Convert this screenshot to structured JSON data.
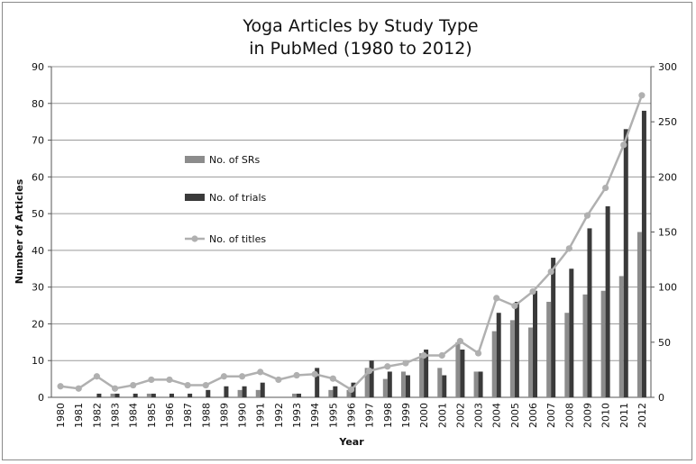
{
  "chart_data": {
    "type": "bar",
    "title_lines": [
      "Yoga Articles by Study Type",
      "in PubMed (1980 to 2012)"
    ],
    "xlabel": "Year",
    "ylabel": "Number of Articles",
    "ylim": [
      0,
      90
    ],
    "y_ticks": [
      0,
      10,
      20,
      30,
      40,
      50,
      60,
      70,
      80,
      90
    ],
    "y2lim": [
      0,
      300
    ],
    "y2_ticks": [
      0,
      50,
      100,
      150,
      200,
      250,
      300
    ],
    "grid": true,
    "legend_position": "left-center",
    "categories": [
      "1980",
      "1981",
      "1982",
      "1983",
      "1984",
      "1985",
      "1986",
      "1987",
      "1988",
      "1989",
      "1990",
      "1991",
      "1992",
      "1993",
      "1994",
      "1995",
      "1996",
      "1997",
      "1998",
      "1999",
      "2000",
      "2001",
      "2002",
      "2003",
      "2004",
      "2005",
      "2006",
      "2007",
      "2008",
      "2009",
      "2010",
      "2011",
      "2012"
    ],
    "series": [
      {
        "name": "No. of SRs",
        "kind": "bar",
        "axis": "left",
        "color": "#8c8c8c",
        "values": [
          0,
          0,
          0,
          1,
          0,
          1,
          0,
          0,
          0,
          0,
          2,
          2,
          0,
          1,
          0,
          2,
          2,
          8,
          5,
          7,
          12,
          8,
          15,
          7,
          18,
          21,
          19,
          26,
          23,
          28,
          29,
          33,
          45
        ]
      },
      {
        "name": "No. of trials",
        "kind": "bar",
        "axis": "left",
        "color": "#3a3a3a",
        "values": [
          0,
          0,
          1,
          1,
          1,
          1,
          1,
          1,
          2,
          3,
          3,
          4,
          0,
          1,
          8,
          3,
          4,
          10,
          7,
          6,
          13,
          6,
          13,
          7,
          23,
          26,
          29,
          38,
          35,
          46,
          52,
          73,
          78
        ]
      },
      {
        "name": "No. of titles",
        "kind": "line",
        "axis": "right",
        "color": "#b0b0b0",
        "values": [
          10,
          8,
          19,
          8,
          11,
          16,
          16,
          11,
          11,
          19,
          19,
          23,
          16,
          20,
          21,
          17,
          7,
          24,
          28,
          31,
          38,
          38,
          51,
          40,
          90,
          83,
          96,
          114,
          135,
          165,
          190,
          229,
          274
        ]
      }
    ]
  }
}
